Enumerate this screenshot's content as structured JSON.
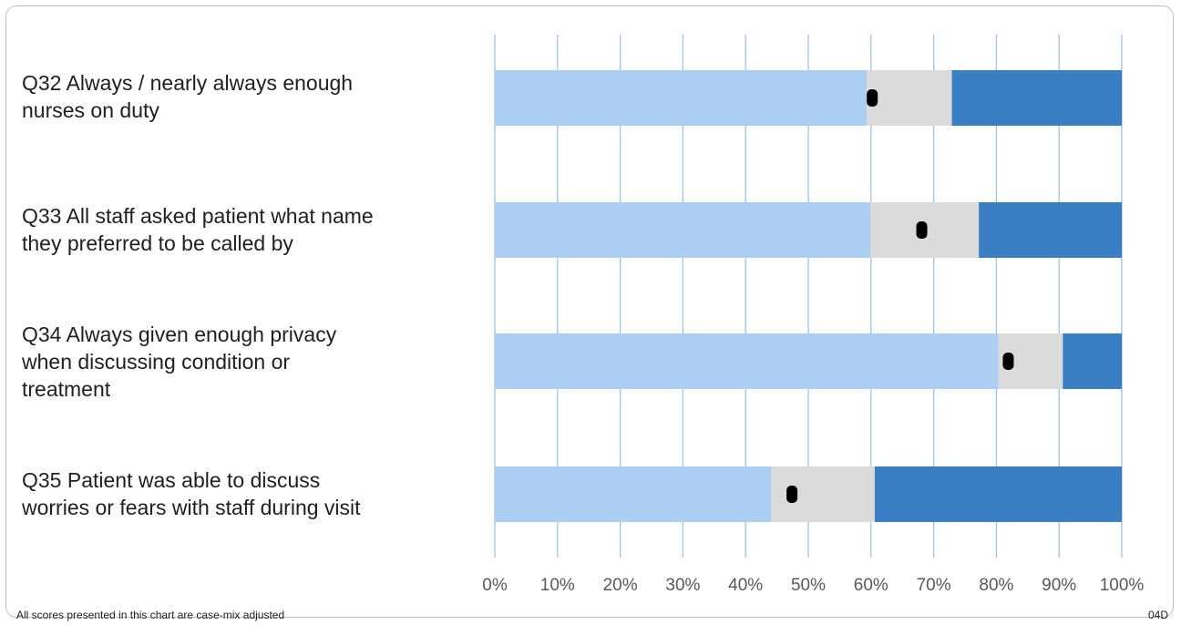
{
  "chart_data": {
    "type": "bar",
    "orientation": "horizontal",
    "stacked": true,
    "categories": [
      "Q32 Always / nearly always enough\nnurses on duty",
      "Q33 All staff asked patient what name\nthey preferred to be called by",
      "Q34 Always given enough privacy\nwhen discussing condition or\ntreatment",
      "Q35 Patient was able to discuss\nworries or fears with staff during visit"
    ],
    "segments": [
      {
        "band": "lower",
        "color": "#aacff3",
        "end": [
          59.3,
          59.9,
          80.3,
          44.1
        ]
      },
      {
        "band": "middle",
        "color": "#dcdbdb",
        "end": [
          72.9,
          77.2,
          90.6,
          60.6
        ]
      },
      {
        "band": "upper",
        "color": "#3a7fc4",
        "end": [
          100,
          100,
          100,
          100
        ]
      }
    ],
    "score_markers": [
      60.2,
      68.1,
      81.9,
      47.4
    ],
    "xlim": [
      0,
      100
    ],
    "x_ticks": [
      "0%",
      "10%",
      "20%",
      "30%",
      "40%",
      "50%",
      "60%",
      "70%",
      "80%",
      "90%",
      "100%"
    ],
    "grid": true,
    "gridline_color": "#9dc3e6",
    "marker_color": "#000000"
  },
  "footnote": "All scores presented in this chart are case-mix adjusted",
  "chart_code": "04D"
}
